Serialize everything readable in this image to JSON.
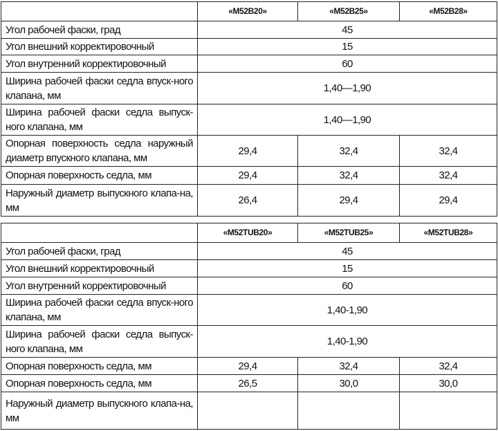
{
  "tables": [
    {
      "headers": [
        "",
        "«M52B20»",
        "«M52B25»",
        "«M52B28»"
      ],
      "rows": [
        {
          "label": "Угол рабочей фаски, град",
          "values": [
            "45"
          ]
        },
        {
          "label": "Угол внешний корректировочный",
          "values": [
            "15"
          ]
        },
        {
          "label": "Угол внутренний корректировочный",
          "values": [
            "60"
          ]
        },
        {
          "label": "Ширина рабочей фаски седла впуск-ного клапана, мм",
          "values": [
            "1,40—1,90"
          ]
        },
        {
          "label": "Ширина рабочей фаски седла выпуск-ного клапана, мм",
          "values": [
            "1,40—1,90"
          ]
        },
        {
          "label": "Опорная поверхность седла наружный диаметр впускного клапана, мм",
          "values": [
            "29,4",
            "32,4",
            "32,4"
          ]
        },
        {
          "label": "Опорная поверхность седла, мм",
          "values": [
            "29,4",
            "32,4",
            "32,4"
          ]
        },
        {
          "label": "Наружный диаметр выпускного клапа-на, мм",
          "values": [
            "26,4",
            "29,4",
            "29,4"
          ]
        }
      ]
    },
    {
      "headers": [
        "",
        "«M52TUB20»",
        "«M52TUB25»",
        "«M52TUB28»"
      ],
      "rows": [
        {
          "label": "Угол рабочей фаски, град",
          "values": [
            "45"
          ]
        },
        {
          "label": "Угол внешний корректировочный",
          "values": [
            "15"
          ]
        },
        {
          "label": "Угол внутренний корректировочный",
          "values": [
            "60"
          ]
        },
        {
          "label": "Ширина рабочей фаски седла впуск-ного клапана, мм",
          "values": [
            "1,40-1,90"
          ]
        },
        {
          "label": "Ширина рабочей фаски седла выпуск-ного клапана, мм",
          "values": [
            "1,40-1,90"
          ]
        },
        {
          "label": "Опорная поверхность седла, мм",
          "values": [
            "29,4",
            "32,4",
            "32,4"
          ]
        },
        {
          "label": "Опорная поверхность седла, мм",
          "values": [
            "26,5",
            "30,0",
            "30,0"
          ]
        },
        {
          "label": "Наружный диаметр выпускного клапа-на, мм",
          "values": [
            "",
            "",
            ""
          ]
        }
      ]
    }
  ]
}
